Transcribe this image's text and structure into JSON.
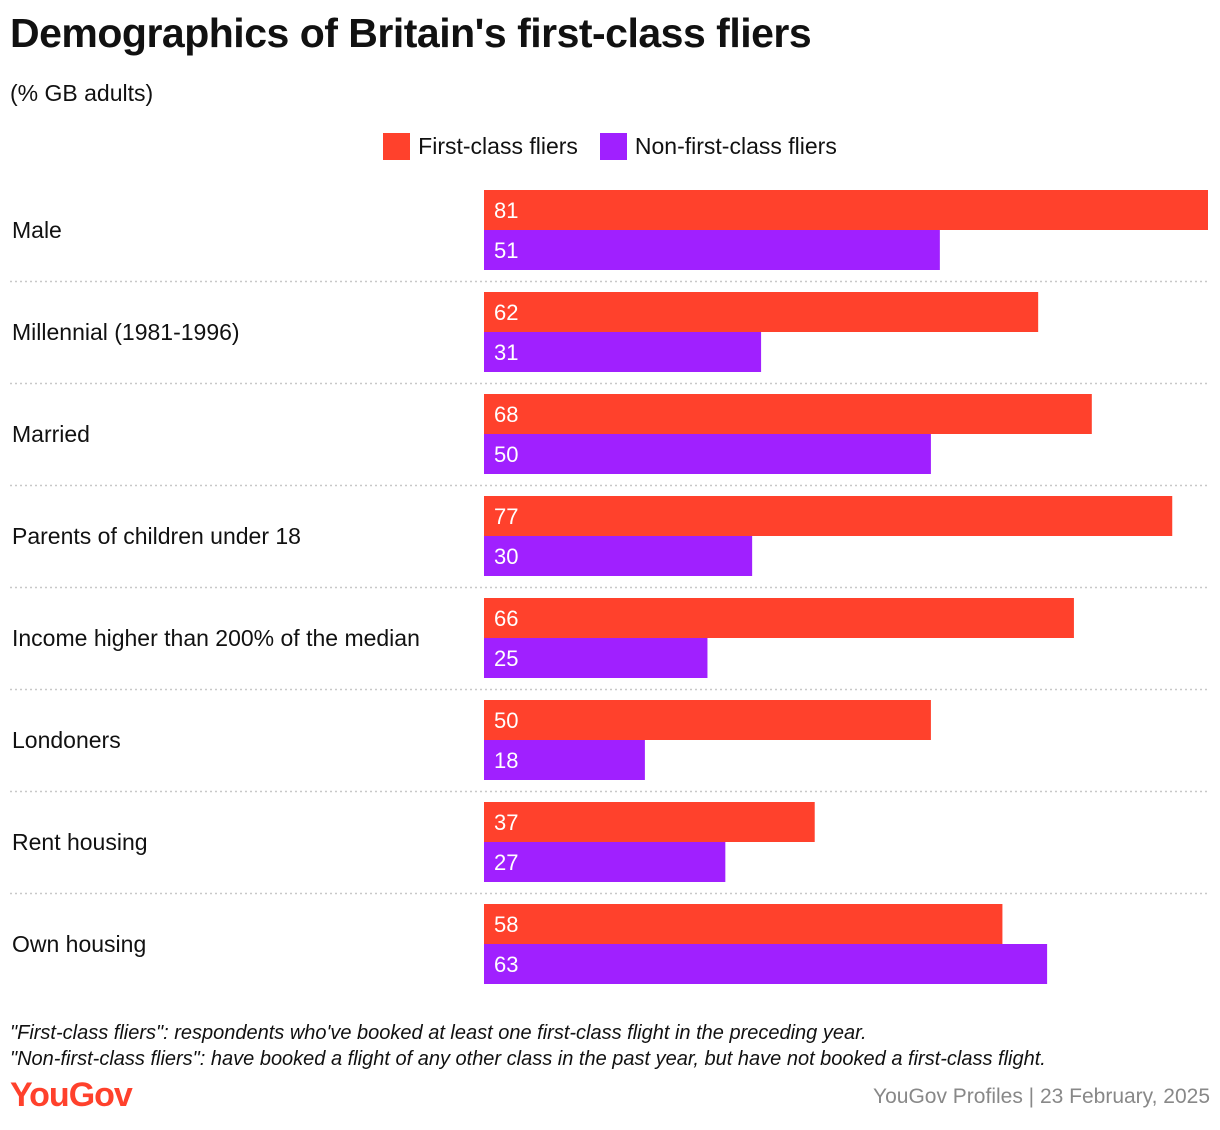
{
  "colors": {
    "first": "#ff412c",
    "non_first": "#a020ff",
    "brand": "#ff412c",
    "separator": "#c8c8c8"
  },
  "chart_data": {
    "type": "bar",
    "orientation": "horizontal",
    "title": "Demographics of Britain's first-class fliers",
    "subtitle": "(% GB adults)",
    "legend_placement": "top-center",
    "grid": false,
    "xlim": [
      0,
      81
    ],
    "categories": [
      "Male",
      "Millennial (1981-1996)",
      "Married",
      "Parents of children under 18",
      "Income higher than 200% of the median",
      "Londoners",
      "Rent housing",
      "Own housing"
    ],
    "series": [
      {
        "name": "First-class fliers",
        "values": [
          81,
          62,
          68,
          77,
          66,
          50,
          37,
          58
        ]
      },
      {
        "name": "Non-first-class fliers",
        "values": [
          51,
          31,
          50,
          30,
          25,
          18,
          27,
          63
        ]
      }
    ]
  },
  "footnotes": [
    "\"First-class fliers\": respondents who've booked at least one first-class flight in the preceding year.",
    "\"Non-first-class fliers\": have booked a flight of any other class in the past year, but have not booked a first-class flight."
  ],
  "brand": "YouGov",
  "credit": "YouGov Profiles | 23 February, 2025"
}
